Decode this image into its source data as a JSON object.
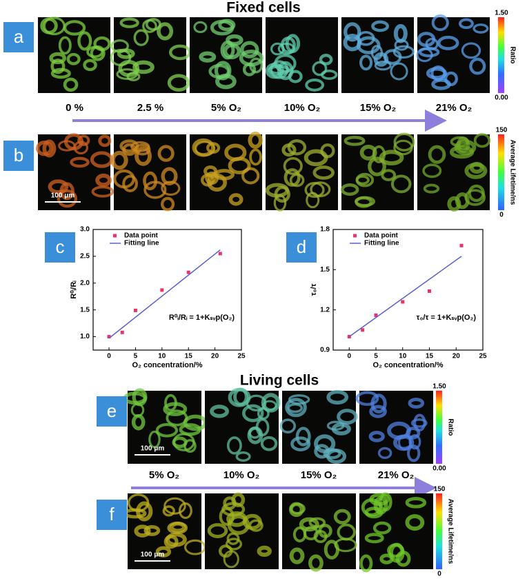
{
  "fixed": {
    "title": "Fixed cells",
    "panel_a": {
      "label": "a",
      "colorbar": {
        "max": "1.50",
        "min": "0.00",
        "title": "Ratio"
      }
    },
    "conditions": [
      "0 %",
      "2.5 %",
      "5% O₂",
      "10% O₂",
      "15% O₂",
      "21% O₂"
    ],
    "panel_b": {
      "label": "b",
      "scale_bar": "100 μm",
      "colorbar": {
        "max": "150",
        "min": "0",
        "title": "Average Lifetime/ns"
      }
    }
  },
  "chart_data": [
    {
      "type": "scatter",
      "panel": "c",
      "x_label": "O₂ concentration/%",
      "y_label": "R⁰ᵢ/Rᵢ",
      "annotation": "R⁰ᵢ/Rᵢ = 1+Kₛᵥp(O₂)",
      "xlim": [
        -3,
        25
      ],
      "xticks": [
        0,
        5,
        10,
        15,
        20,
        25
      ],
      "ylim": [
        0.75,
        3.0
      ],
      "yticks": [
        {
          "value": 1.0,
          "label": "1.0"
        },
        1.5,
        {
          "value": 2.0,
          "label": "2.0"
        },
        2.5,
        {
          "value": 3.0,
          "label": "3.0"
        }
      ],
      "legend": "top-left",
      "series": [
        {
          "name": "Data point",
          "color": "#e8336b",
          "style": "points",
          "x": [
            0,
            2.5,
            5,
            10,
            15,
            21
          ],
          "values": [
            1.0,
            1.08,
            1.49,
            1.87,
            2.2,
            2.55
          ]
        },
        {
          "name": "Fitting line",
          "color": "#5a5fd0",
          "style": "line",
          "x": [
            0,
            21
          ],
          "values": [
            0.97,
            2.62
          ]
        }
      ]
    },
    {
      "type": "scatter",
      "panel": "d",
      "x_label": "O₂ concentration/%",
      "y_label": "τ₀/τ",
      "annotation": "τ₀/τ = 1+Kₛᵥp(O₂)",
      "xlim": [
        -3,
        25
      ],
      "xticks": [
        0,
        5,
        10,
        15,
        20,
        25
      ],
      "ylim": [
        0.9,
        1.8
      ],
      "yticks": [
        0.9,
        1.2,
        1.5,
        1.8
      ],
      "legend": "top-left",
      "series": [
        {
          "name": "Data point",
          "color": "#e8336b",
          "style": "points",
          "x": [
            0,
            2.5,
            5,
            10,
            15,
            21
          ],
          "values": [
            1.0,
            1.05,
            1.16,
            1.26,
            1.34,
            1.68
          ]
        },
        {
          "name": "Fitting line",
          "color": "#5a5fd0",
          "style": "line",
          "x": [
            0,
            21
          ],
          "values": [
            1.0,
            1.6
          ]
        }
      ]
    }
  ],
  "living": {
    "title": "Living cells",
    "panel_e": {
      "label": "e",
      "scale_bar": "100 μm",
      "colorbar": {
        "max": "1.50",
        "min": "0.00",
        "title": "Ratio"
      }
    },
    "conditions": [
      "5% O₂",
      "10% O₂",
      "15% O₂",
      "21% O₂"
    ],
    "panel_f": {
      "label": "f",
      "scale_bar": "100 μm",
      "colorbar": {
        "max": "150",
        "min": "0",
        "title": "Average Lifetime/ns"
      }
    }
  }
}
